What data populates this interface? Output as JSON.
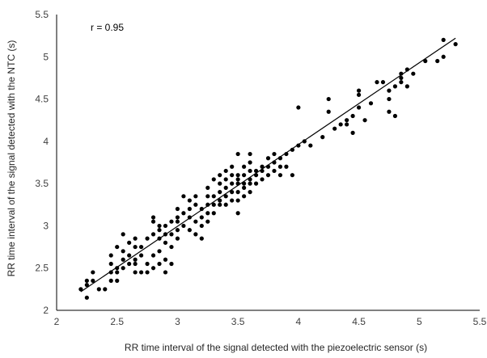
{
  "chart_data": {
    "type": "scatter",
    "title": "",
    "xlabel": "RR time interval of the signal detected with the piezoelectric sensor (s)",
    "ylabel": "RR time interval of the signal detected with the NTC (s)",
    "annotation": "r = 0.95",
    "xlim": [
      2,
      5.5
    ],
    "ylim": [
      2,
      5.5
    ],
    "x_ticks": [
      "2",
      "2.5",
      "3",
      "3.5",
      "4",
      "4.5",
      "5",
      "5.5"
    ],
    "y_ticks": [
      "2",
      "2.5",
      "3",
      "3.5",
      "4",
      "4.5",
      "5",
      "5.5"
    ],
    "grid": false,
    "legend": "none",
    "trendline": {
      "x": [
        2.2,
        5.3
      ],
      "y": [
        2.22,
        5.22
      ]
    },
    "marker_color": "#000000",
    "points": [
      [
        2.2,
        2.25
      ],
      [
        2.25,
        2.15
      ],
      [
        2.25,
        2.3
      ],
      [
        2.25,
        2.35
      ],
      [
        2.3,
        2.35
      ],
      [
        2.3,
        2.45
      ],
      [
        2.35,
        2.25
      ],
      [
        2.4,
        2.25
      ],
      [
        2.45,
        2.35
      ],
      [
        2.45,
        2.45
      ],
      [
        2.45,
        2.55
      ],
      [
        2.45,
        2.65
      ],
      [
        2.5,
        2.35
      ],
      [
        2.5,
        2.45
      ],
      [
        2.5,
        2.5
      ],
      [
        2.5,
        2.75
      ],
      [
        2.55,
        2.5
      ],
      [
        2.55,
        2.6
      ],
      [
        2.55,
        2.7
      ],
      [
        2.55,
        2.9
      ],
      [
        2.6,
        2.55
      ],
      [
        2.6,
        2.65
      ],
      [
        2.6,
        2.8
      ],
      [
        2.65,
        2.45
      ],
      [
        2.65,
        2.55
      ],
      [
        2.65,
        2.6
      ],
      [
        2.65,
        2.75
      ],
      [
        2.65,
        2.85
      ],
      [
        2.7,
        2.45
      ],
      [
        2.7,
        2.75
      ],
      [
        2.7,
        2.65
      ],
      [
        2.75,
        2.45
      ],
      [
        2.75,
        2.55
      ],
      [
        2.75,
        2.85
      ],
      [
        2.8,
        2.5
      ],
      [
        2.8,
        2.65
      ],
      [
        2.8,
        2.9
      ],
      [
        2.8,
        3.05
      ],
      [
        2.8,
        3.1
      ],
      [
        2.85,
        2.55
      ],
      [
        2.85,
        2.7
      ],
      [
        2.85,
        2.85
      ],
      [
        2.85,
        2.95
      ],
      [
        2.85,
        3.0
      ],
      [
        2.9,
        2.45
      ],
      [
        2.9,
        2.6
      ],
      [
        2.9,
        2.8
      ],
      [
        2.9,
        2.9
      ],
      [
        2.9,
        3.0
      ],
      [
        2.95,
        2.55
      ],
      [
        2.95,
        2.75
      ],
      [
        2.95,
        2.9
      ],
      [
        2.95,
        3.05
      ],
      [
        3.0,
        2.85
      ],
      [
        3.0,
        2.95
      ],
      [
        3.0,
        3.05
      ],
      [
        3.0,
        3.1
      ],
      [
        3.0,
        3.2
      ],
      [
        3.05,
        3.0
      ],
      [
        3.05,
        3.15
      ],
      [
        3.05,
        3.35
      ],
      [
        3.1,
        2.95
      ],
      [
        3.1,
        3.1
      ],
      [
        3.1,
        3.2
      ],
      [
        3.1,
        3.3
      ],
      [
        3.15,
        2.9
      ],
      [
        3.15,
        3.05
      ],
      [
        3.15,
        3.25
      ],
      [
        3.15,
        3.35
      ],
      [
        3.2,
        2.85
      ],
      [
        3.2,
        3.0
      ],
      [
        3.2,
        3.1
      ],
      [
        3.2,
        3.2
      ],
      [
        3.25,
        3.05
      ],
      [
        3.25,
        3.15
      ],
      [
        3.25,
        3.25
      ],
      [
        3.25,
        3.35
      ],
      [
        3.25,
        3.45
      ],
      [
        3.3,
        3.15
      ],
      [
        3.3,
        3.25
      ],
      [
        3.3,
        3.35
      ],
      [
        3.3,
        3.55
      ],
      [
        3.35,
        3.25
      ],
      [
        3.35,
        3.3
      ],
      [
        3.35,
        3.4
      ],
      [
        3.35,
        3.5
      ],
      [
        3.35,
        3.6
      ],
      [
        3.4,
        3.25
      ],
      [
        3.4,
        3.35
      ],
      [
        3.4,
        3.45
      ],
      [
        3.4,
        3.55
      ],
      [
        3.4,
        3.65
      ],
      [
        3.45,
        3.3
      ],
      [
        3.45,
        3.4
      ],
      [
        3.45,
        3.5
      ],
      [
        3.45,
        3.6
      ],
      [
        3.45,
        3.7
      ],
      [
        3.5,
        3.15
      ],
      [
        3.5,
        3.3
      ],
      [
        3.5,
        3.4
      ],
      [
        3.5,
        3.5
      ],
      [
        3.5,
        3.55
      ],
      [
        3.5,
        3.6
      ],
      [
        3.5,
        3.85
      ],
      [
        3.55,
        3.35
      ],
      [
        3.55,
        3.45
      ],
      [
        3.55,
        3.5
      ],
      [
        3.55,
        3.6
      ],
      [
        3.55,
        3.7
      ],
      [
        3.6,
        3.4
      ],
      [
        3.6,
        3.5
      ],
      [
        3.6,
        3.55
      ],
      [
        3.6,
        3.65
      ],
      [
        3.6,
        3.75
      ],
      [
        3.6,
        3.85
      ],
      [
        3.65,
        3.5
      ],
      [
        3.65,
        3.6
      ],
      [
        3.65,
        3.65
      ],
      [
        3.7,
        3.55
      ],
      [
        3.7,
        3.65
      ],
      [
        3.7,
        3.7
      ],
      [
        3.75,
        3.6
      ],
      [
        3.75,
        3.7
      ],
      [
        3.75,
        3.8
      ],
      [
        3.8,
        3.65
      ],
      [
        3.8,
        3.75
      ],
      [
        3.8,
        3.85
      ],
      [
        3.85,
        3.6
      ],
      [
        3.85,
        3.7
      ],
      [
        3.85,
        3.8
      ],
      [
        3.9,
        3.7
      ],
      [
        3.9,
        3.85
      ],
      [
        3.95,
        3.6
      ],
      [
        3.95,
        3.9
      ],
      [
        4.0,
        3.95
      ],
      [
        4.0,
        4.4
      ],
      [
        4.05,
        4.0
      ],
      [
        4.1,
        3.95
      ],
      [
        4.2,
        4.05
      ],
      [
        4.25,
        4.35
      ],
      [
        4.25,
        4.5
      ],
      [
        4.3,
        4.15
      ],
      [
        4.35,
        4.2
      ],
      [
        4.4,
        4.2
      ],
      [
        4.4,
        4.25
      ],
      [
        4.45,
        4.1
      ],
      [
        4.45,
        4.3
      ],
      [
        4.5,
        4.4
      ],
      [
        4.5,
        4.55
      ],
      [
        4.5,
        4.6
      ],
      [
        4.55,
        4.25
      ],
      [
        4.6,
        4.45
      ],
      [
        4.65,
        4.7
      ],
      [
        4.7,
        4.7
      ],
      [
        4.75,
        4.5
      ],
      [
        4.75,
        4.6
      ],
      [
        4.75,
        4.35
      ],
      [
        4.8,
        4.65
      ],
      [
        4.8,
        4.3
      ],
      [
        4.85,
        4.7
      ],
      [
        4.85,
        4.75
      ],
      [
        4.85,
        4.8
      ],
      [
        4.9,
        4.85
      ],
      [
        4.9,
        4.65
      ],
      [
        4.95,
        4.8
      ],
      [
        5.05,
        4.95
      ],
      [
        5.15,
        4.95
      ],
      [
        5.2,
        5.0
      ],
      [
        5.2,
        5.2
      ],
      [
        5.3,
        5.15
      ]
    ]
  }
}
